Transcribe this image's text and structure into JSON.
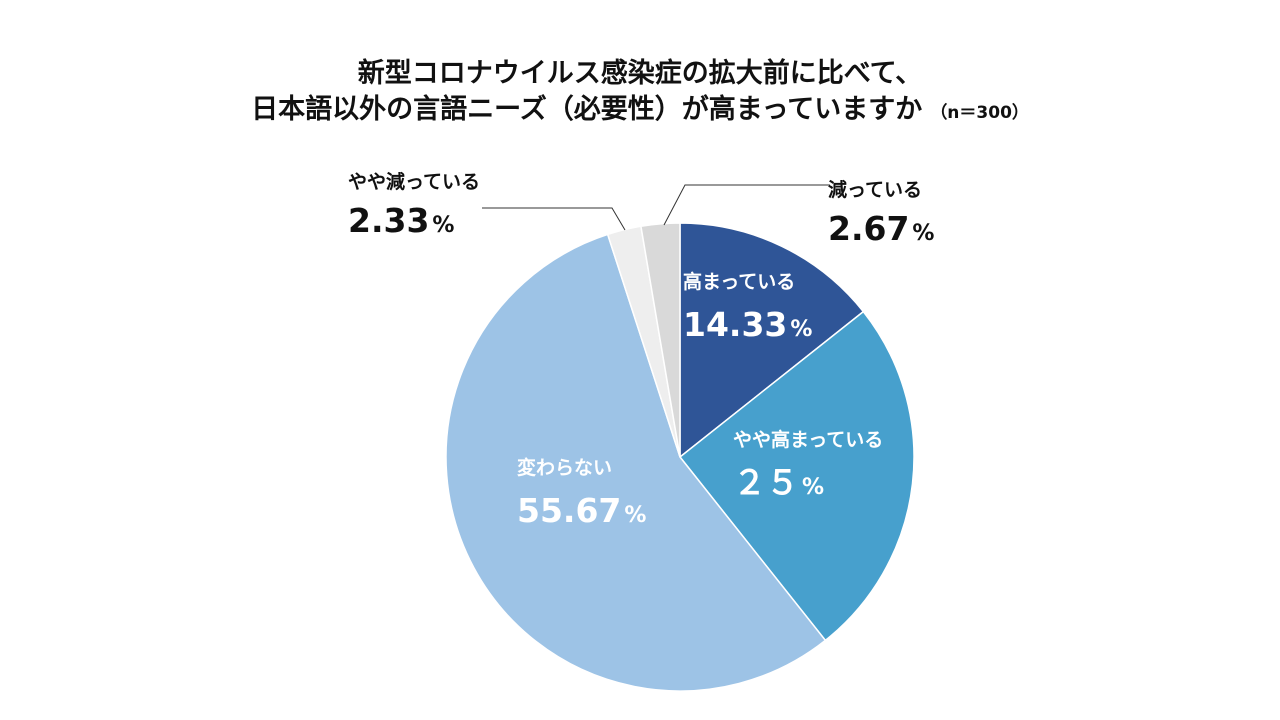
{
  "chart_data": {
    "type": "pie",
    "title_line1": "新型コロナウイルス感染症の拡大前に比べて、",
    "title_line2": "日本語以外の言語ニーズ（必要性）が高まっていますか",
    "sample_note": "（n＝300）",
    "slices": [
      {
        "label": "高まっている",
        "value": 14.33,
        "display": "14.33",
        "unit": "%",
        "color": "#2f5597",
        "text_color": "#ffffff"
      },
      {
        "label": "やや高まっている",
        "value": 25,
        "display": "２５",
        "unit": "%",
        "color": "#47a0cd",
        "text_color": "#ffffff"
      },
      {
        "label": "変わらない",
        "value": 55.67,
        "display": "55.67",
        "unit": "%",
        "color": "#9dc3e6",
        "text_color": "#ffffff"
      },
      {
        "label": "やや減っている",
        "value": 2.33,
        "display": "2.33",
        "unit": "%",
        "color": "#eeeeee",
        "text_color": "#111111"
      },
      {
        "label": "減っている",
        "value": 2.67,
        "display": "2.67",
        "unit": "%",
        "color": "#d9d9d9",
        "text_color": "#111111"
      }
    ],
    "start_angle_deg": 0,
    "direction": "clockwise",
    "legend": "none"
  }
}
